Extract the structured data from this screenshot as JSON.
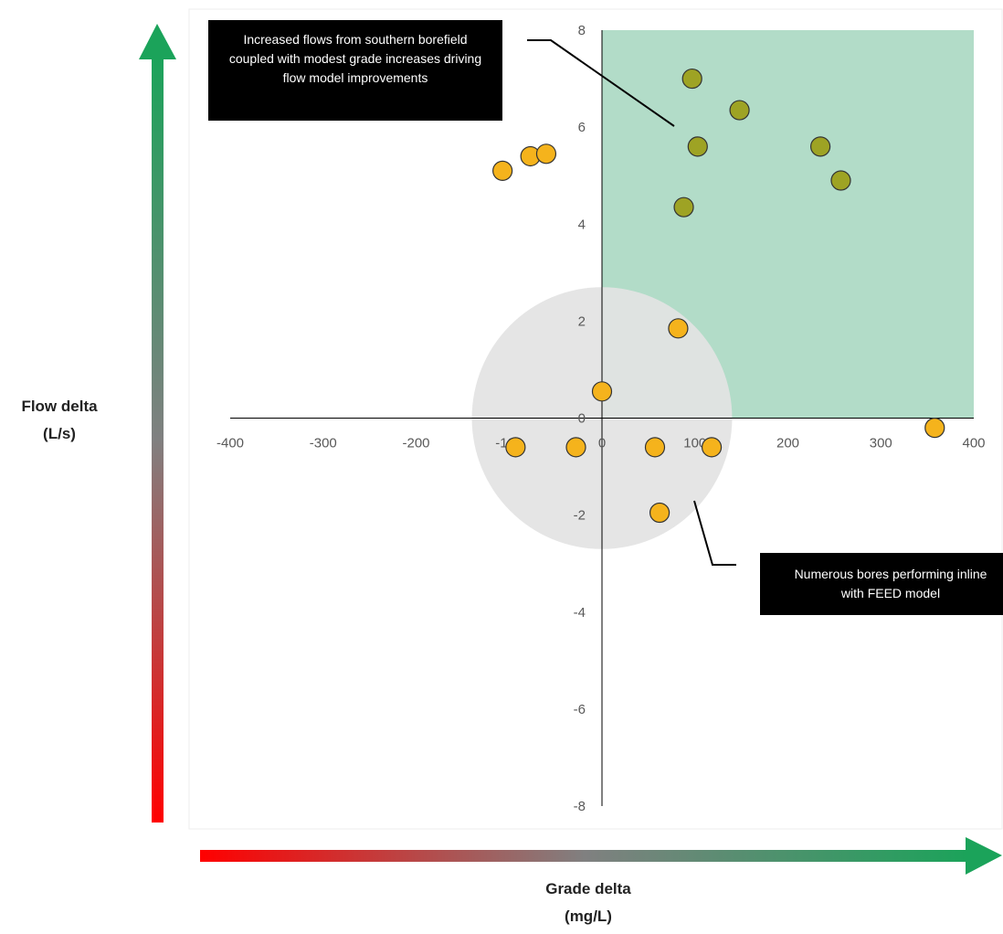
{
  "colors": {
    "quadrant_fill": "#b2dcc8",
    "circle_fill": "#e3e3e3",
    "point_fill": "#f5b31c",
    "point_fill_in_quadrant": "#9ea324",
    "point_stroke": "#333333",
    "arrow_good": "#1ba35a",
    "arrow_bad": "#ff0000",
    "arrow_mid": "#7f7f7f"
  },
  "labels": {
    "y_axis_line1": "Flow delta",
    "y_axis_line2": "(L/s)",
    "x_axis_line1": "Grade delta",
    "x_axis_line2": "(mg/L)"
  },
  "callouts": {
    "top_text": "Increased flows from southern borefield coupled with modest grade increases driving flow model improvements",
    "bottom_text": "Numerous bores performing inline with FEED model"
  },
  "chart_data": {
    "type": "scatter",
    "title": "",
    "xlabel": "Grade delta (mg/L)",
    "ylabel": "Flow delta (L/s)",
    "xlim": [
      -400,
      400
    ],
    "ylim": [
      -8,
      8
    ],
    "x_ticks": [
      "-400",
      "-300",
      "-200",
      "-100",
      "0",
      "100",
      "200",
      "300",
      "400"
    ],
    "y_ticks": [
      "8",
      "6",
      "4",
      "2",
      "0",
      "-2",
      "-4",
      "-6",
      "-8"
    ],
    "highlight_region": {
      "x": [
        0,
        400
      ],
      "y": [
        0,
        8
      ]
    },
    "neutral_zone": {
      "center": [
        0,
        0
      ],
      "radius_x": 140,
      "radius_y": 2.7
    },
    "grid": false,
    "legend": "none",
    "points": [
      {
        "x": -107,
        "y": 5.1
      },
      {
        "x": -77,
        "y": 5.4
      },
      {
        "x": -60,
        "y": 5.45
      },
      {
        "x": 97,
        "y": 7.0
      },
      {
        "x": 148,
        "y": 6.35
      },
      {
        "x": 103,
        "y": 5.6
      },
      {
        "x": 235,
        "y": 5.6
      },
      {
        "x": 257,
        "y": 4.9
      },
      {
        "x": 88,
        "y": 4.35
      },
      {
        "x": 82,
        "y": 1.85
      },
      {
        "x": 0,
        "y": 0.55
      },
      {
        "x": 358,
        "y": -0.2
      },
      {
        "x": -93,
        "y": -0.6
      },
      {
        "x": -28,
        "y": -0.6
      },
      {
        "x": 57,
        "y": -0.6
      },
      {
        "x": 118,
        "y": -0.6
      },
      {
        "x": 62,
        "y": -1.95
      }
    ]
  }
}
